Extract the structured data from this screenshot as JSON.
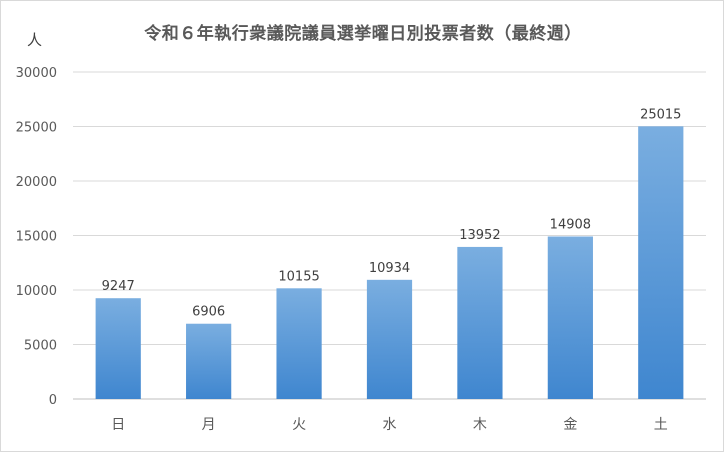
{
  "chart_data": {
    "type": "bar",
    "title": "令和６年執行衆議院議員選挙曜日別投票者数（最終週）",
    "ylabel": "人",
    "xlabel": "",
    "categories": [
      "日",
      "月",
      "火",
      "水",
      "木",
      "金",
      "土"
    ],
    "values": [
      9247,
      6906,
      10155,
      10934,
      13952,
      14908,
      25015
    ],
    "ylim": [
      0,
      30000
    ],
    "yticks": [
      0,
      5000,
      10000,
      15000,
      20000,
      25000,
      30000
    ],
    "grid": true,
    "data_labels": true,
    "bar_color_top": "#7aaee0",
    "bar_color_bottom": "#3f86cf"
  }
}
